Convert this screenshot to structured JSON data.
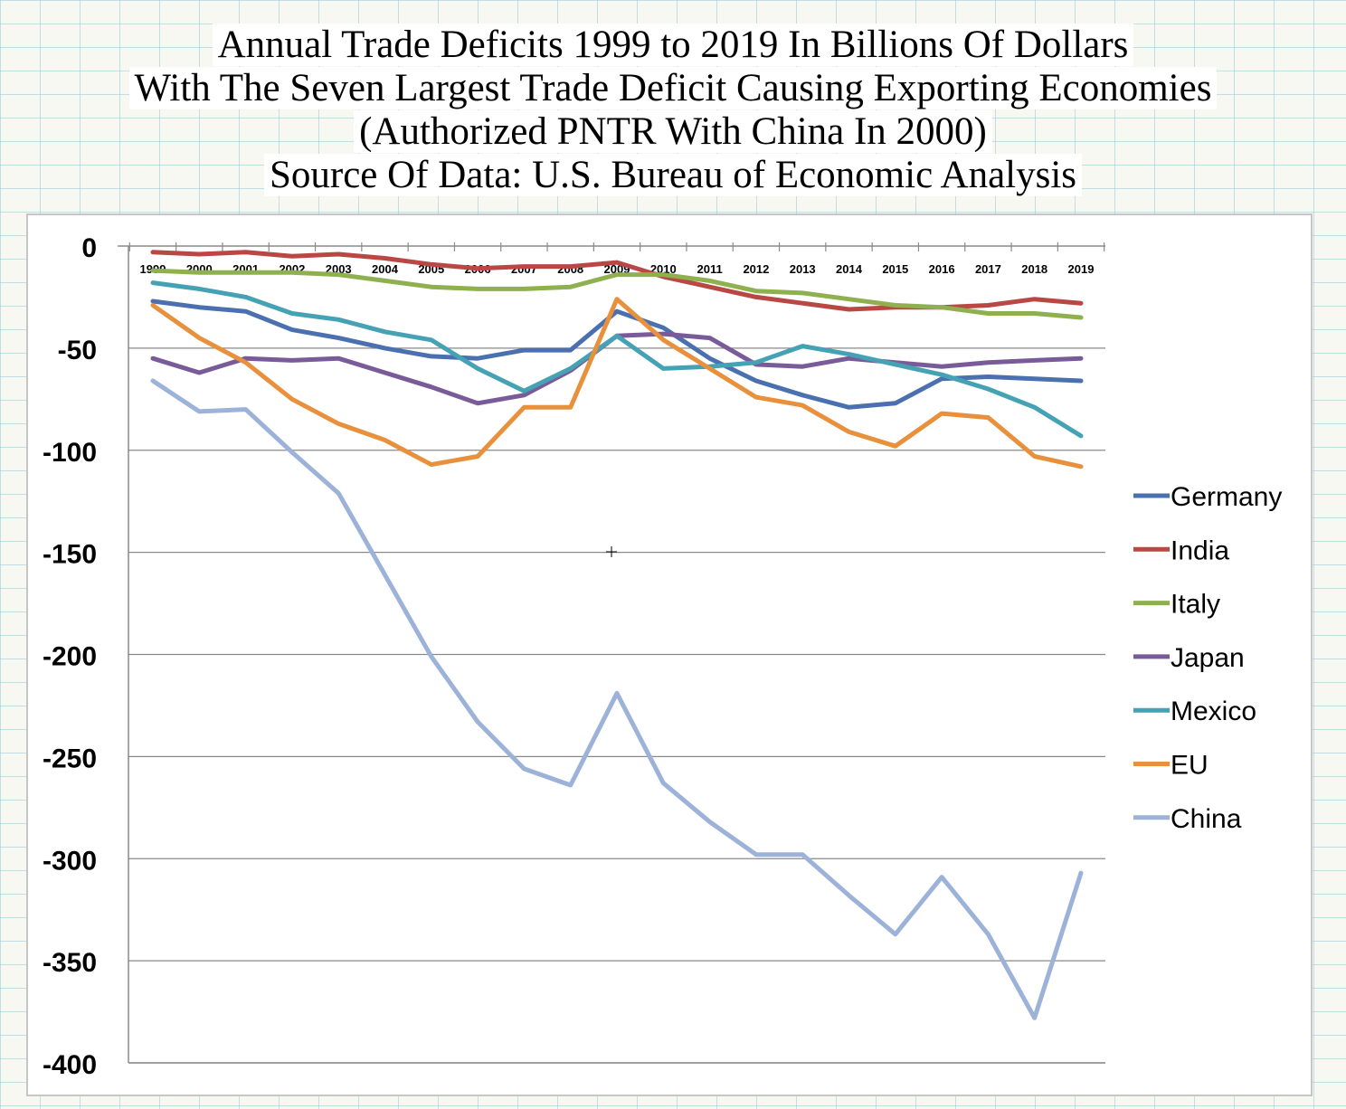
{
  "title_lines": [
    "Annual Trade Deficits 1999 to 2019 In Billions Of Dollars",
    "With The Seven Largest Trade Deficit Causing Exporting Economies",
    "(Authorized PNTR With China In 2000)",
    "Source Of Data: U.S. Bureau of Economic Analysis"
  ],
  "chart_data": {
    "type": "line",
    "title": "",
    "xlabel": "",
    "ylabel": "",
    "ylim": [
      -400,
      0
    ],
    "yticks": [
      0,
      -50,
      -100,
      -150,
      -200,
      -250,
      -300,
      -350,
      -400
    ],
    "ytick_labels": [
      "0",
      "-50",
      "-100",
      "-150",
      "-200",
      "-250",
      "-300",
      "-350",
      "-400"
    ],
    "grid": "horizontal",
    "legend_position": "right",
    "x_labels_position": "top",
    "categories": [
      "1999",
      "2000",
      "2001",
      "2002",
      "2003",
      "2004",
      "2005",
      "2006",
      "2007",
      "2008",
      "2009",
      "2010",
      "2011",
      "2012",
      "2013",
      "2014",
      "2015",
      "2016",
      "2017",
      "2018",
      "2019"
    ],
    "series": [
      {
        "name": "Germany",
        "color": "#4a70b0",
        "values": [
          -27,
          -30,
          -32,
          -41,
          -45,
          -50,
          -54,
          -55,
          -51,
          -51,
          -32,
          -40,
          -55,
          -66,
          -73,
          -79,
          -77,
          -65,
          -64,
          -65,
          -66
        ]
      },
      {
        "name": "India",
        "color": "#b94845",
        "values": [
          -3,
          -4,
          -3,
          -5,
          -4,
          -6,
          -9,
          -11,
          -10,
          -10,
          -8,
          -15,
          -20,
          -25,
          -28,
          -31,
          -30,
          -30,
          -29,
          -26,
          -28
        ]
      },
      {
        "name": "Italy",
        "color": "#8eb04f",
        "values": [
          -12,
          -13,
          -13,
          -13,
          -14,
          -17,
          -20,
          -21,
          -21,
          -20,
          -14,
          -14,
          -17,
          -22,
          -23,
          -26,
          -29,
          -30,
          -33,
          -33,
          -35
        ]
      },
      {
        "name": "Japan",
        "color": "#7a5b9a",
        "values": [
          -55,
          -62,
          -55,
          -56,
          -55,
          -62,
          -69,
          -77,
          -73,
          -61,
          -44,
          -43,
          -45,
          -58,
          -59,
          -55,
          -57,
          -59,
          -57,
          -56,
          -55
        ]
      },
      {
        "name": "Mexico",
        "color": "#45a2b5",
        "values": [
          -18,
          -21,
          -25,
          -33,
          -36,
          -42,
          -46,
          -60,
          -71,
          -60,
          -44,
          -60,
          -59,
          -57,
          -49,
          -53,
          -58,
          -63,
          -70,
          -79,
          -93
        ]
      },
      {
        "name": "EU",
        "color": "#e8903c",
        "values": [
          -29,
          -45,
          -57,
          -75,
          -87,
          -95,
          -107,
          -103,
          -79,
          -79,
          -26,
          -46,
          -60,
          -74,
          -78,
          -91,
          -98,
          -82,
          -84,
          -103,
          -108
        ]
      },
      {
        "name": "China",
        "color": "#9db2d8",
        "values": [
          -66,
          -81,
          -80,
          -101,
          -121,
          -161,
          -201,
          -233,
          -256,
          -264,
          -219,
          -263,
          -282,
          -298,
          -298,
          -318,
          -337,
          -309,
          -337,
          -378,
          -307
        ]
      }
    ]
  }
}
